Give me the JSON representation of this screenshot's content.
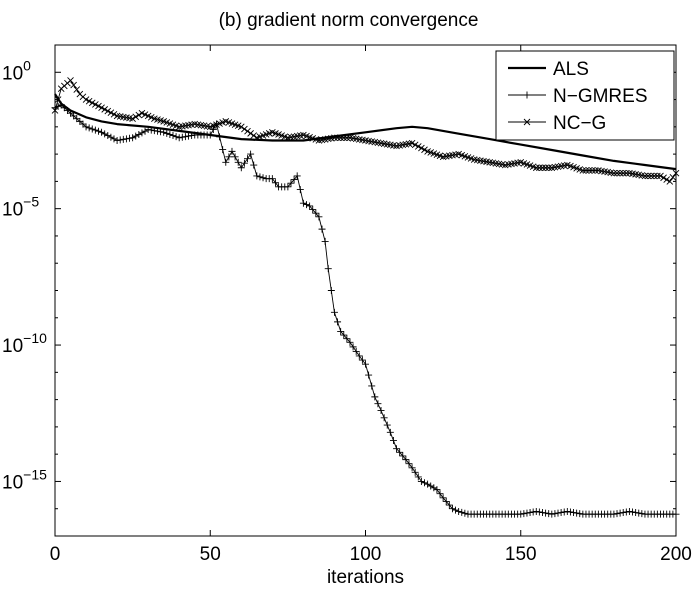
{
  "chart_data": {
    "type": "line",
    "title": "(b) gradient norm convergence",
    "xlabel": "iterations",
    "ylabel": "",
    "xlim": [
      0,
      200
    ],
    "ylim": [
      1e-17,
      10
    ],
    "yscale": "log",
    "xticks": [
      {
        "value": 0,
        "label": "0"
      },
      {
        "value": 50,
        "label": "50"
      },
      {
        "value": 100,
        "label": "100"
      },
      {
        "value": 150,
        "label": "150"
      },
      {
        "value": 200,
        "label": "200"
      }
    ],
    "yticks": [
      {
        "exp": 0,
        "base": "10",
        "sup": "0"
      },
      {
        "exp": -5,
        "base": "10",
        "sup": "−5"
      },
      {
        "exp": -10,
        "base": "10",
        "sup": "−10"
      },
      {
        "exp": -15,
        "base": "10",
        "sup": "−15"
      }
    ],
    "legend_position": "top-right",
    "grid": false,
    "series": [
      {
        "name": "ALS",
        "style": "thick-line",
        "color": "#000000",
        "x": [
          0,
          2,
          5,
          10,
          15,
          20,
          30,
          40,
          50,
          60,
          70,
          80,
          90,
          100,
          110,
          115,
          120,
          130,
          140,
          150,
          160,
          170,
          180,
          190,
          200
        ],
        "log10y": [
          -0.8,
          -1.15,
          -1.4,
          -1.65,
          -1.8,
          -1.9,
          -2.0,
          -2.15,
          -2.3,
          -2.45,
          -2.5,
          -2.5,
          -2.35,
          -2.2,
          -2.05,
          -2.0,
          -2.05,
          -2.25,
          -2.45,
          -2.65,
          -2.85,
          -3.05,
          -3.25,
          -3.4,
          -3.55
        ]
      },
      {
        "name": "N−GMRES",
        "style": "plus-markers",
        "color": "#000000",
        "x": [
          0,
          2,
          5,
          10,
          15,
          20,
          25,
          30,
          35,
          40,
          45,
          50,
          52,
          55,
          57,
          60,
          63,
          65,
          68,
          70,
          72,
          75,
          78,
          80,
          82,
          85,
          87,
          88,
          90,
          92,
          95,
          98,
          100,
          103,
          105,
          108,
          110,
          113,
          115,
          118,
          120,
          123,
          125,
          128,
          130,
          133,
          135,
          140,
          145,
          150,
          155,
          160,
          165,
          170,
          175,
          180,
          185,
          190,
          195,
          200
        ],
        "log10y": [
          -1.3,
          -1.2,
          -1.5,
          -2.0,
          -2.2,
          -2.5,
          -2.4,
          -2.1,
          -2.2,
          -2.4,
          -2.3,
          -2.3,
          -1.9,
          -3.3,
          -2.9,
          -3.5,
          -3.0,
          -3.8,
          -3.9,
          -3.9,
          -4.2,
          -4.2,
          -3.8,
          -4.8,
          -4.9,
          -5.3,
          -6.2,
          -7.2,
          -8.8,
          -9.5,
          -9.9,
          -10.4,
          -10.7,
          -11.9,
          -12.4,
          -13.2,
          -13.8,
          -14.2,
          -14.5,
          -15.0,
          -15.1,
          -15.3,
          -15.6,
          -16.0,
          -16.1,
          -16.2,
          -16.2,
          -16.2,
          -16.2,
          -16.2,
          -16.1,
          -16.2,
          -16.1,
          -16.2,
          -16.2,
          -16.2,
          -16.1,
          -16.2,
          -16.2,
          -16.2
        ]
      },
      {
        "name": "NC−G",
        "style": "x-markers",
        "color": "#000000",
        "x": [
          0,
          2,
          5,
          8,
          10,
          15,
          20,
          25,
          28,
          32,
          35,
          40,
          45,
          50,
          55,
          60,
          65,
          70,
          75,
          80,
          85,
          90,
          95,
          100,
          105,
          110,
          115,
          120,
          125,
          130,
          135,
          140,
          145,
          150,
          155,
          160,
          165,
          170,
          175,
          180,
          185,
          190,
          195,
          198,
          200
        ],
        "log10y": [
          -1.4,
          -0.6,
          -0.3,
          -0.8,
          -1.0,
          -1.3,
          -1.6,
          -1.7,
          -1.5,
          -1.7,
          -1.8,
          -2.0,
          -1.9,
          -2.0,
          -1.8,
          -2.0,
          -2.4,
          -2.2,
          -2.4,
          -2.3,
          -2.5,
          -2.4,
          -2.4,
          -2.5,
          -2.6,
          -2.7,
          -2.6,
          -2.9,
          -3.1,
          -3.0,
          -3.2,
          -3.3,
          -3.4,
          -3.3,
          -3.5,
          -3.5,
          -3.4,
          -3.6,
          -3.6,
          -3.7,
          -3.7,
          -3.8,
          -3.8,
          -4.0,
          -3.7
        ]
      }
    ]
  }
}
